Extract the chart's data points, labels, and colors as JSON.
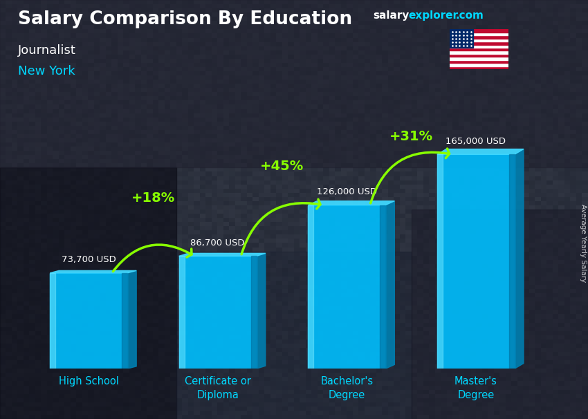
{
  "title": "Salary Comparison By Education",
  "subtitle_job": "Journalist",
  "subtitle_location": "New York",
  "ylabel": "Average Yearly Salary",
  "categories": [
    "High School",
    "Certificate or\nDiploma",
    "Bachelor's\nDegree",
    "Master's\nDegree"
  ],
  "values": [
    73700,
    86700,
    126000,
    165000
  ],
  "value_labels": [
    "73,700 USD",
    "86,700 USD",
    "126,000 USD",
    "165,000 USD"
  ],
  "pct_changes": [
    "+18%",
    "+45%",
    "+31%"
  ],
  "bar_color": "#00bfff",
  "bar_color_light": "#40d8ff",
  "bar_color_dark": "#007fb0",
  "bar_color_top": "#80eeff",
  "bg_color": "#2a2d3a",
  "title_color": "#ffffff",
  "subtitle_job_color": "#ffffff",
  "subtitle_location_color": "#00d8ff",
  "value_label_color": "#ffffff",
  "pct_color": "#88ff00",
  "xtick_color": "#00d8ff",
  "salary_color": "#ffffff",
  "explorer_color": "#00d8ff",
  "dotcom_color": "#00d8ff",
  "ylim": [
    0,
    200000
  ],
  "bar_width": 0.6,
  "arrow_color": "#88ff00"
}
